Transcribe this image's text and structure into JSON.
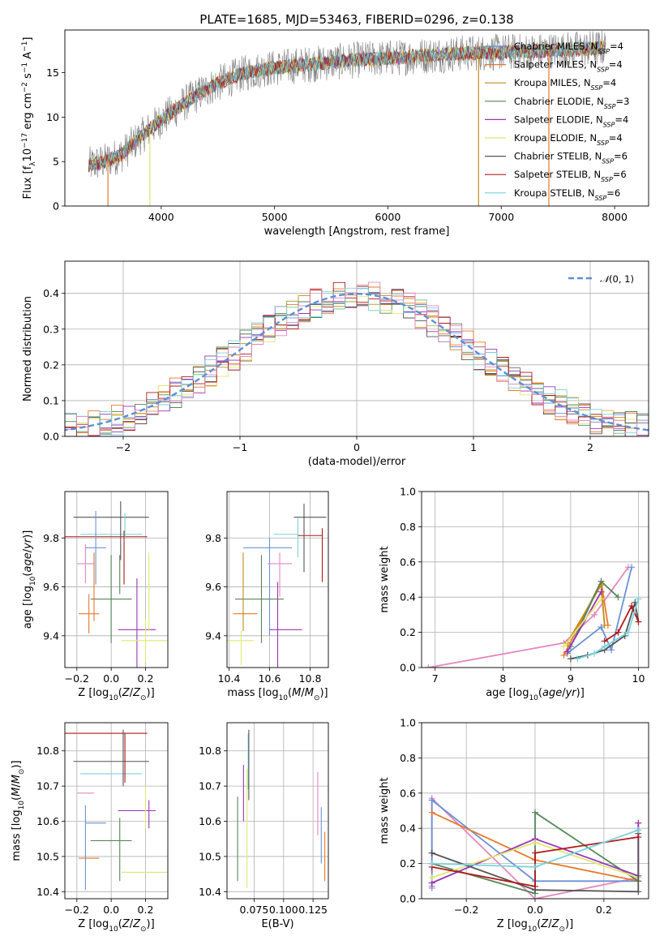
{
  "figure_title": "PLATE=1685, MJD=53463, FIBERID=0296, z=0.138",
  "colors": {
    "Chabrier MILES": "#6b91d6",
    "Salpeter MILES": "#e8792a",
    "Kroupa MILES": "#c48a1c",
    "Chabrier ELODIE": "#55875a",
    "Salpeter ELODIE": "#9a35b5",
    "Kroupa ELODIE": "#dfe870",
    "Chabrier STELIB": "#555555",
    "Salpeter STELIB": "#b01a1a",
    "Kroupa STELIB": "#79d3dd",
    "data": "#808080",
    "pink": "#e587bf",
    "gaussian": "#5b8fd6"
  },
  "chart_data": [
    {
      "id": "spectrum",
      "type": "line",
      "xlabel": "wavelength [Angstrom, rest frame]",
      "ylabel": "Flux [f_λ10^-17 erg cm^-2 s^-1 A^-1]",
      "xlim": [
        3150,
        8300
      ],
      "ylim": [
        0,
        19.8
      ],
      "xticks": [
        4000,
        5000,
        6000,
        7000,
        8000
      ],
      "yticks": [
        0,
        5,
        10,
        15
      ],
      "legend_position": "top-right",
      "legend": [
        "Chabrier MILES, N_SSP=4",
        "Salpeter MILES, N_SSP=4",
        "Kroupa MILES, N_SSP=4",
        "Chabrier ELODIE, N_SSP=3",
        "Salpeter ELODIE, N_SSP=4",
        "Kroupa ELODIE, N_SSP=4",
        "Chabrier STELIB, N_SSP=6",
        "Salpeter STELIB, N_SSP=6",
        "Kroupa STELIB, N_SSP=6"
      ],
      "legend_keys": [
        "Chabrier MILES",
        "Salpeter MILES",
        "Kroupa MILES",
        "Chabrier ELODIE",
        "Salpeter ELODIE",
        "Kroupa ELODIE",
        "Chabrier STELIB",
        "Salpeter STELIB",
        "Kroupa STELIB"
      ],
      "data_range": [
        3360,
        7920
      ],
      "continuum_nodes": [
        [
          3360,
          4.6
        ],
        [
          3500,
          5.0
        ],
        [
          3650,
          5.8
        ],
        [
          3800,
          7.6
        ],
        [
          3950,
          9.2
        ],
        [
          4100,
          10.6
        ],
        [
          4300,
          12.4
        ],
        [
          4500,
          13.8
        ],
        [
          4700,
          14.8
        ],
        [
          4900,
          15.4
        ],
        [
          5200,
          15.8
        ],
        [
          5500,
          16.2
        ],
        [
          5800,
          16.5
        ],
        [
          6100,
          16.7
        ],
        [
          6400,
          17.0
        ],
        [
          6700,
          17.2
        ],
        [
          7000,
          17.3
        ],
        [
          7300,
          17.4
        ],
        [
          7600,
          17.6
        ],
        [
          7920,
          17.8
        ]
      ],
      "model_spikes": [
        {
          "x": 3530,
          "y": 0,
          "color": "#e8792a"
        },
        {
          "x": 3900,
          "y": 0,
          "color": "#dfe870"
        },
        {
          "x": 6800,
          "y": 0,
          "color": "#c48a1c"
        },
        {
          "x": 7420,
          "y": 0,
          "color": "#e8792a"
        }
      ]
    },
    {
      "id": "residuals",
      "type": "histogram",
      "xlabel": "(data-model)/error",
      "ylabel": "Normed distribution",
      "xlim": [
        -2.5,
        2.5
      ],
      "ylim": [
        0,
        0.49
      ],
      "xticks": [
        -2,
        -1,
        0,
        1,
        2
      ],
      "yticks": [
        0.0,
        0.1,
        0.2,
        0.3,
        0.4
      ],
      "grid": true,
      "legend_position": "top-right",
      "gaussian_label": "N(0,1)",
      "bin_width": 0.1
    },
    {
      "id": "age_vs_Z",
      "type": "errorbar",
      "xlabel": "Z [log10(Z/Z⊙)]",
      "ylabel": "age [log10(age/yr)]",
      "xlim": [
        -0.27,
        0.33
      ],
      "ylim": [
        9.27,
        9.99
      ],
      "xticks": [
        -0.2,
        0.0,
        0.2
      ],
      "xticklabels": [
        "−0.2",
        "0.0",
        "0.2"
      ],
      "yticks": [
        9.4,
        9.6,
        9.8
      ],
      "grid": true,
      "points": [
        {
          "key": "Chabrier STELIB",
          "x": 0.0,
          "xe": 0.22,
          "y": 9.885,
          "ye": 0.0
        },
        {
          "key": "Kroupa STELIB",
          "x": 0.0,
          "xe": 0.18,
          "y": 9.815,
          "ye": 0.0
        },
        {
          "key": "Salpeter STELIB",
          "x": -0.03,
          "xe": 0.24,
          "y": 9.805,
          "ye": 0.0
        },
        {
          "key": "Chabrier MILES",
          "x": -0.09,
          "xe": 0.06,
          "y": 9.76,
          "ye": 0.15
        },
        {
          "key": "pink",
          "x": -0.15,
          "xe": 0.05,
          "y": 9.695,
          "ye": 0.08
        },
        {
          "key": "Chabrier ELODIE",
          "x": 0.0,
          "xe": 0.12,
          "y": 9.55,
          "ye": 0.18
        },
        {
          "key": "Salpeter MILES",
          "x": -0.13,
          "xe": 0.06,
          "y": 9.49,
          "ye": 0.08
        },
        {
          "key": "Salpeter ELODIE",
          "x": 0.15,
          "xe": 0.11,
          "y": 9.425,
          "ye": 0.21
        },
        {
          "key": "Kroupa ELODIE",
          "x": 0.2,
          "xe": 0.14,
          "y": 9.38,
          "ye": 0.09
        },
        {
          "key": "Chabrier STELIB",
          "x": 0.055,
          "xe": 0.0,
          "y": 9.83,
          "ye": 0.12
        },
        {
          "key": "Salpeter STELIB",
          "x": 0.075,
          "xe": 0.0,
          "y": 9.72,
          "ye": 0.11
        },
        {
          "key": "Kroupa STELIB",
          "x": 0.08,
          "xe": 0.0,
          "y": 9.85,
          "ye": 0.05
        },
        {
          "key": "Kroupa ELODIE",
          "x": 0.22,
          "xe": 0.0,
          "y": 9.58,
          "ye": 0.16
        },
        {
          "key": "Chabrier ELODIE",
          "x": 0.05,
          "xe": 0.0,
          "y": 9.65,
          "ye": 0.08
        },
        {
          "key": "Salpeter MILES",
          "x": -0.1,
          "xe": 0.0,
          "y": 9.6,
          "ye": 0.14
        }
      ]
    },
    {
      "id": "age_vs_mass",
      "type": "errorbar",
      "xlabel": "mass [log10(M/M⊙)]",
      "ylabel": "",
      "xlim": [
        10.39,
        10.89
      ],
      "ylim": [
        9.27,
        9.99
      ],
      "xticks": [
        10.4,
        10.6,
        10.8
      ],
      "yticks": [
        9.4,
        9.6,
        9.8
      ],
      "grid": true,
      "points": [
        {
          "key": "Chabrier STELIB",
          "x": 10.8,
          "xe": 0.08,
          "y": 9.885,
          "ye": 0.0
        },
        {
          "key": "Kroupa STELIB",
          "x": 10.74,
          "xe": 0.0,
          "y": 9.8,
          "ye": 0.08
        },
        {
          "key": "Kroupa STELIB",
          "x": 10.68,
          "xe": 0.06,
          "y": 9.815,
          "ye": 0.0
        },
        {
          "key": "Salpeter STELIB",
          "x": 10.8,
          "xe": 0.06,
          "y": 9.81,
          "ye": 0.0
        },
        {
          "key": "Salpeter STELIB",
          "x": 10.86,
          "xe": 0.0,
          "y": 9.73,
          "ye": 0.11
        },
        {
          "key": "Chabrier STELIB",
          "x": 10.77,
          "xe": 0.0,
          "y": 9.8,
          "ye": 0.14
        },
        {
          "key": "Chabrier MILES",
          "x": 10.59,
          "xe": 0.12,
          "y": 9.76,
          "ye": 0.0
        },
        {
          "key": "Chabrier MILES",
          "x": 10.6,
          "xe": 0.0,
          "y": 9.6,
          "ye": 0.2
        },
        {
          "key": "pink",
          "x": 10.65,
          "xe": 0.06,
          "y": 9.695,
          "ye": 0.0
        },
        {
          "key": "pink",
          "x": 10.65,
          "xe": 0.0,
          "y": 9.65,
          "ye": 0.09
        },
        {
          "key": "Chabrier ELODIE",
          "x": 10.55,
          "xe": 0.12,
          "y": 9.55,
          "ye": 0.0
        },
        {
          "key": "Chabrier ELODIE",
          "x": 10.56,
          "xe": 0.0,
          "y": 9.55,
          "ye": 0.18
        },
        {
          "key": "Salpeter MILES",
          "x": 10.48,
          "xe": 0.06,
          "y": 9.49,
          "ye": 0.0
        },
        {
          "key": "Kroupa MILES",
          "x": 10.47,
          "xe": 0.0,
          "y": 9.58,
          "ye": 0.16
        },
        {
          "key": "Salpeter ELODIE",
          "x": 10.68,
          "xe": 0.08,
          "y": 9.425,
          "ye": 0.0
        },
        {
          "key": "Salpeter ELODIE",
          "x": 10.64,
          "xe": 0.0,
          "y": 9.43,
          "ye": 0.19
        },
        {
          "key": "Kroupa ELODIE",
          "x": 10.45,
          "xe": 0.07,
          "y": 9.38,
          "ye": 0.0
        },
        {
          "key": "Kroupa ELODIE",
          "x": 10.46,
          "xe": 0.0,
          "y": 9.35,
          "ye": 0.07
        }
      ]
    },
    {
      "id": "mass_weight_vs_age",
      "type": "line",
      "xlabel": "age [log10(age/yr)]",
      "ylabel": "mass weight",
      "xlim": [
        6.8,
        10.15
      ],
      "ylim": [
        0.0,
        1.0
      ],
      "xticks": [
        7,
        8,
        9,
        10
      ],
      "yticks": [
        0.0,
        0.2,
        0.4,
        0.6,
        0.8,
        1.0
      ],
      "grid": true,
      "series": [
        {
          "key": "pink",
          "x": [
            6.9,
            8.9,
            9.35,
            9.85
          ],
          "y": [
            0.0,
            0.14,
            0.3,
            0.57
          ]
        },
        {
          "key": "Chabrier MILES",
          "x": [
            8.95,
            9.45,
            9.6,
            9.9
          ],
          "y": [
            0.08,
            0.23,
            0.1,
            0.57
          ]
        },
        {
          "key": "Salpeter MILES",
          "x": [
            8.9,
            9.45,
            9.55
          ],
          "y": [
            0.07,
            0.49,
            0.24
          ]
        },
        {
          "key": "Kroupa MILES",
          "x": [
            8.95,
            9.45,
            9.5
          ],
          "y": [
            0.14,
            0.47,
            0.24
          ]
        },
        {
          "key": "Chabrier ELODIE",
          "x": [
            9.0,
            9.45,
            9.7
          ],
          "y": [
            0.12,
            0.49,
            0.4
          ]
        },
        {
          "key": "Salpeter ELODIE",
          "x": [
            8.95,
            9.45
          ],
          "y": [
            0.09,
            0.43
          ]
        },
        {
          "key": "Kroupa ELODIE",
          "x": [
            8.9,
            9.45
          ],
          "y": [
            0.12,
            0.39
          ]
        },
        {
          "key": "Chabrier STELIB",
          "x": [
            9.0,
            9.25,
            9.5,
            9.8,
            9.95,
            10.0
          ],
          "y": [
            0.05,
            0.07,
            0.1,
            0.18,
            0.37,
            0.26
          ]
        },
        {
          "key": "Salpeter STELIB",
          "x": [
            9.5,
            9.7,
            9.9,
            10.0
          ],
          "y": [
            0.15,
            0.2,
            0.35,
            0.26
          ]
        },
        {
          "key": "Kroupa STELIB",
          "x": [
            9.1,
            9.35,
            9.5,
            9.85,
            10.0
          ],
          "y": [
            0.05,
            0.08,
            0.12,
            0.2,
            0.39
          ]
        }
      ]
    },
    {
      "id": "mass_vs_Z",
      "type": "errorbar",
      "xlabel": "Z [log10(Z/Z⊙)]",
      "ylabel": "mass [log10(M/M⊙)]",
      "xlim": [
        -0.27,
        0.33
      ],
      "ylim": [
        10.38,
        10.88
      ],
      "xticks": [
        -0.2,
        0.0,
        0.2
      ],
      "xticklabels": [
        "−0.2",
        "0.0",
        "0.2"
      ],
      "yticks": [
        10.4,
        10.5,
        10.6,
        10.7,
        10.8
      ],
      "grid": true,
      "points": [
        {
          "key": "Salpeter STELIB",
          "x": -0.03,
          "xe": 0.24,
          "y": 10.85,
          "ye": 0.0
        },
        {
          "key": "Chabrier STELIB",
          "x": 0.0,
          "xe": 0.22,
          "y": 10.77,
          "ye": 0.0
        },
        {
          "key": "Kroupa STELIB",
          "x": 0.0,
          "xe": 0.18,
          "y": 10.735,
          "ye": 0.0
        },
        {
          "key": "pink",
          "x": -0.15,
          "xe": 0.05,
          "y": 10.68,
          "ye": 0.0
        },
        {
          "key": "Salpeter ELODIE",
          "x": 0.15,
          "xe": 0.11,
          "y": 10.63,
          "ye": 0.0
        },
        {
          "key": "Chabrier MILES",
          "x": -0.09,
          "xe": 0.06,
          "y": 10.595,
          "ye": 0.0
        },
        {
          "key": "Chabrier ELODIE",
          "x": 0.0,
          "xe": 0.12,
          "y": 10.545,
          "ye": 0.0
        },
        {
          "key": "Salpeter MILES",
          "x": -0.13,
          "xe": 0.06,
          "y": 10.495,
          "ye": 0.0
        },
        {
          "key": "Kroupa ELODIE",
          "x": 0.2,
          "xe": 0.14,
          "y": 10.455,
          "ye": 0.0
        },
        {
          "key": "Chabrier STELIB",
          "x": 0.07,
          "xe": 0.0,
          "y": 10.78,
          "ye": 0.08
        },
        {
          "key": "Salpeter STELIB",
          "x": 0.08,
          "xe": 0.0,
          "y": 10.78,
          "ye": 0.07
        },
        {
          "key": "Kroupa ELODIE",
          "x": 0.2,
          "xe": 0.0,
          "y": 10.64,
          "ye": 0.06
        },
        {
          "key": "Chabrier ELODIE",
          "x": 0.05,
          "xe": 0.0,
          "y": 10.52,
          "ye": 0.09
        },
        {
          "key": "Chabrier MILES",
          "x": -0.15,
          "xe": 0.0,
          "y": 10.525,
          "ye": 0.12
        },
        {
          "key": "Salpeter ELODIE",
          "x": 0.22,
          "xe": 0.0,
          "y": 10.62,
          "ye": 0.04
        }
      ]
    },
    {
      "id": "mass_vs_ebv",
      "type": "errorbar",
      "xlabel": "E(B-V)",
      "ylabel": "",
      "xlim": [
        0.052,
        0.138
      ],
      "ylim": [
        10.38,
        10.88
      ],
      "xticks": [
        0.075,
        0.1,
        0.125
      ],
      "xticklabels": [
        "0.075",
        "0.100",
        "0.125"
      ],
      "yticks": [
        10.4,
        10.5,
        10.6,
        10.7,
        10.8
      ],
      "grid": true,
      "points": [
        {
          "key": "Chabrier ELODIE",
          "x": 0.061,
          "xe": 0.0,
          "y": 10.55,
          "ye": 0.12
        },
        {
          "key": "Salpeter ELODIE",
          "x": 0.066,
          "xe": 0.0,
          "y": 10.68,
          "ye": 0.08
        },
        {
          "key": "Kroupa ELODIE",
          "x": 0.069,
          "xe": 0.0,
          "y": 10.58,
          "ye": 0.17
        },
        {
          "key": "Kroupa STELIB",
          "x": 0.07,
          "xe": 0.0,
          "y": 10.77,
          "ye": 0.08
        },
        {
          "key": "Chabrier STELIB",
          "x": 0.0705,
          "xe": 0.0,
          "y": 10.76,
          "ye": 0.1
        },
        {
          "key": "pink",
          "x": 0.129,
          "xe": 0.0,
          "y": 10.65,
          "ye": 0.09
        },
        {
          "key": "Chabrier MILES",
          "x": 0.132,
          "xe": 0.0,
          "y": 10.56,
          "ye": 0.08
        },
        {
          "key": "Salpeter MILES",
          "x": 0.135,
          "xe": 0.0,
          "y": 10.5,
          "ye": 0.07
        }
      ]
    },
    {
      "id": "mass_weight_vs_Z",
      "type": "line",
      "xlabel": "Z [log10(Z/Z⊙)]",
      "ylabel": "mass weight",
      "xlim": [
        -0.33,
        0.33
      ],
      "ylim": [
        0.0,
        1.0
      ],
      "xticks": [
        -0.2,
        0.0,
        0.2
      ],
      "xticklabels": [
        "−0.2",
        "0.0",
        "0.2"
      ],
      "yticks": [
        0.0,
        0.2,
        0.4,
        0.6,
        0.8,
        1.0
      ],
      "grid": true,
      "series": [
        {
          "key": "pink",
          "x": [
            -0.3,
            -0.3,
            0.0,
            0.3,
            0.3
          ],
          "y": [
            0.06,
            0.57,
            0.0,
            0.12,
            0.43
          ]
        },
        {
          "key": "Chabrier MILES",
          "x": [
            -0.3,
            -0.3,
            0.0,
            0.0,
            0.3,
            0.3
          ],
          "y": [
            0.07,
            0.56,
            0.1,
            0.1,
            0.1,
            0.12
          ]
        },
        {
          "key": "Salpeter MILES",
          "x": [
            -0.3,
            0.0,
            0.3
          ],
          "y": [
            0.49,
            0.22,
            0.1
          ]
        },
        {
          "key": "Chabrier ELODIE",
          "x": [
            -0.3,
            0.0,
            0.0,
            0.3
          ],
          "y": [
            0.2,
            0.03,
            0.49,
            0.1
          ]
        },
        {
          "key": "Salpeter ELODIE",
          "x": [
            -0.3,
            0.0,
            0.3,
            0.3
          ],
          "y": [
            0.09,
            0.34,
            0.13,
            0.43
          ]
        },
        {
          "key": "Kroupa ELODIE",
          "x": [
            -0.3,
            0.0,
            0.3
          ],
          "y": [
            0.12,
            0.32,
            0.12
          ]
        },
        {
          "key": "Chabrier STELIB",
          "x": [
            -0.3,
            -0.3,
            0.0,
            0.3,
            0.3
          ],
          "y": [
            0.26,
            0.26,
            0.05,
            0.04,
            0.37
          ]
        },
        {
          "key": "Salpeter STELIB",
          "x": [
            -0.3,
            0.0,
            0.0,
            0.3
          ],
          "y": [
            0.18,
            0.07,
            0.26,
            0.35
          ]
        },
        {
          "key": "Kroupa STELIB",
          "x": [
            -0.3,
            0.0,
            0.3
          ],
          "y": [
            0.2,
            0.18,
            0.39
          ]
        }
      ]
    }
  ]
}
